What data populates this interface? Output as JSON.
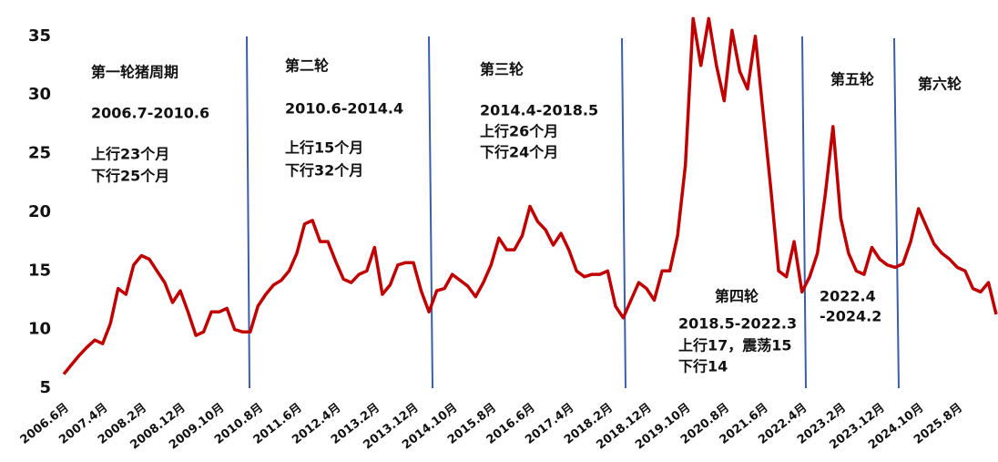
{
  "chart_data": {
    "type": "line",
    "categories": [
      "2006.6月",
      null,
      null,
      null,
      null,
      "2007.4月",
      null,
      null,
      null,
      null,
      "2008.2月",
      null,
      null,
      null,
      null,
      "2008.12月",
      null,
      null,
      null,
      null,
      "2009.10月",
      null,
      null,
      null,
      null,
      "2010.8月",
      null,
      null,
      null,
      null,
      "2011.6月",
      null,
      null,
      null,
      null,
      "2012.4月",
      null,
      null,
      null,
      null,
      "2013.2月",
      null,
      null,
      null,
      null,
      "2013.12月",
      null,
      null,
      null,
      null,
      "2014.10月",
      null,
      null,
      null,
      null,
      "2015.8月",
      null,
      null,
      null,
      null,
      "2016.6月",
      null,
      null,
      null,
      null,
      "2017.4月",
      null,
      null,
      null,
      null,
      "2018.2月",
      null,
      null,
      null,
      null,
      "2018.12月",
      null,
      null,
      null,
      null,
      "2019.10月",
      null,
      null,
      null,
      null,
      "2020.8月",
      null,
      null,
      null,
      null,
      "2021.6月",
      null,
      null,
      null,
      null,
      "2022.4月",
      null,
      null,
      null,
      null,
      "2023.2月",
      null,
      null,
      null,
      null,
      "2023.12月",
      null,
      null,
      null,
      null,
      "2024.10月",
      null,
      null,
      null,
      null,
      "2025.8月",
      null,
      null,
      null,
      null,
      null
    ],
    "series": [
      {
        "color": "#c00000",
        "values": [
          6.2,
          7.0,
          7.8,
          8.5,
          9.1,
          8.8,
          10.5,
          13.5,
          13.0,
          15.5,
          16.3,
          16.0,
          15.0,
          14.0,
          12.3,
          13.3,
          11.5,
          9.5,
          9.8,
          11.5,
          11.5,
          11.8,
          10.0,
          9.8,
          9.8,
          12.0,
          13.0,
          13.8,
          14.2,
          15.0,
          16.5,
          19.0,
          19.3,
          17.5,
          17.5,
          15.8,
          14.3,
          14.0,
          14.7,
          15.0,
          17.0,
          13.0,
          13.8,
          15.5,
          15.7,
          15.7,
          13.3,
          11.5,
          13.3,
          13.5,
          14.7,
          14.2,
          13.7,
          12.8,
          14.0,
          15.5,
          17.8,
          16.8,
          16.8,
          18.0,
          20.5,
          19.2,
          18.5,
          17.2,
          18.2,
          16.8,
          15.0,
          14.5,
          14.7,
          14.7,
          15.0,
          12.0,
          11.0,
          12.5,
          14.0,
          13.5,
          12.5,
          15.0,
          15.0,
          18.0,
          24.0,
          36.5,
          32.5,
          36.5,
          32.5,
          29.5,
          35.5,
          32.0,
          30.5,
          35.0,
          28.5,
          22.0,
          15.0,
          14.5,
          17.5,
          13.2,
          14.5,
          16.5,
          21.5,
          27.3,
          19.5,
          16.5,
          15.0,
          14.7,
          17.0,
          16.0,
          15.5,
          15.3,
          15.6,
          17.5,
          20.3,
          18.8,
          17.3,
          16.5,
          16.0,
          15.3,
          15.0,
          13.5,
          13.2,
          14.0,
          11.3
        ]
      }
    ],
    "ylim": [
      5,
      37
    ],
    "yticks": [
      5,
      10,
      15,
      20,
      25,
      30,
      35
    ],
    "annotations": [
      [
        "第一轮猪周期",
        "2006.7-2010.6",
        "上行23个月",
        "下行25个月"
      ],
      [
        "第二轮",
        "2010.6-2014.4",
        "上行15个月",
        "下行32个月"
      ],
      [
        "第三轮",
        "2014.4-2018.5",
        "上行26个月",
        "下行24个月"
      ],
      [
        "第四轮",
        "2018.5-2022.3",
        "上行17，震荡15",
        "下行14"
      ],
      [
        "第五轮",
        "2022.4",
        "-2024.2"
      ],
      [
        "第六轮"
      ]
    ]
  }
}
